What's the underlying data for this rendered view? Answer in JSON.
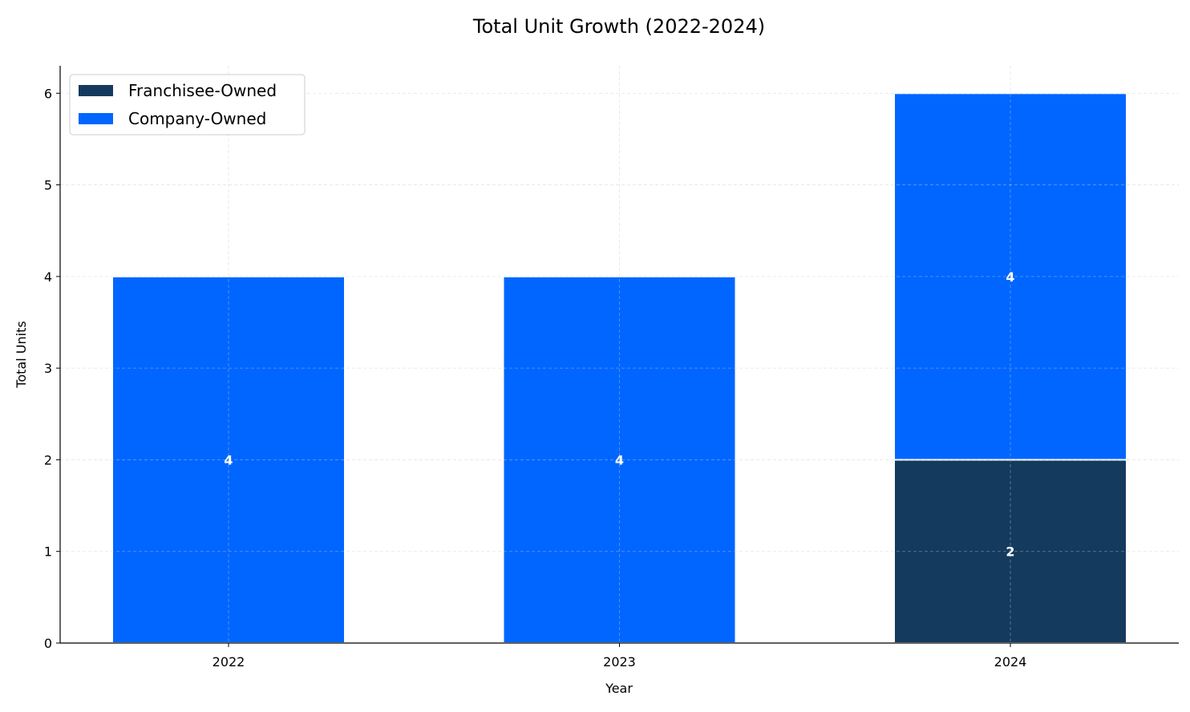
{
  "chart_data": {
    "type": "bar",
    "stacked": true,
    "title": "Total Unit Growth (2022-2024)",
    "xlabel": "Year",
    "ylabel": "Total Units",
    "categories": [
      "2022",
      "2023",
      "2024"
    ],
    "series": [
      {
        "name": "Franchisee-Owned",
        "values": [
          0,
          0,
          2
        ],
        "color": "#143A5E"
      },
      {
        "name": "Company-Owned",
        "values": [
          4,
          4,
          4
        ],
        "color": "#0066FF"
      }
    ],
    "ylim": [
      0,
      6.3
    ],
    "yticks": [
      0,
      1,
      2,
      3,
      4,
      5,
      6
    ],
    "grid": true,
    "legend": "top-left",
    "data_labels": true
  }
}
